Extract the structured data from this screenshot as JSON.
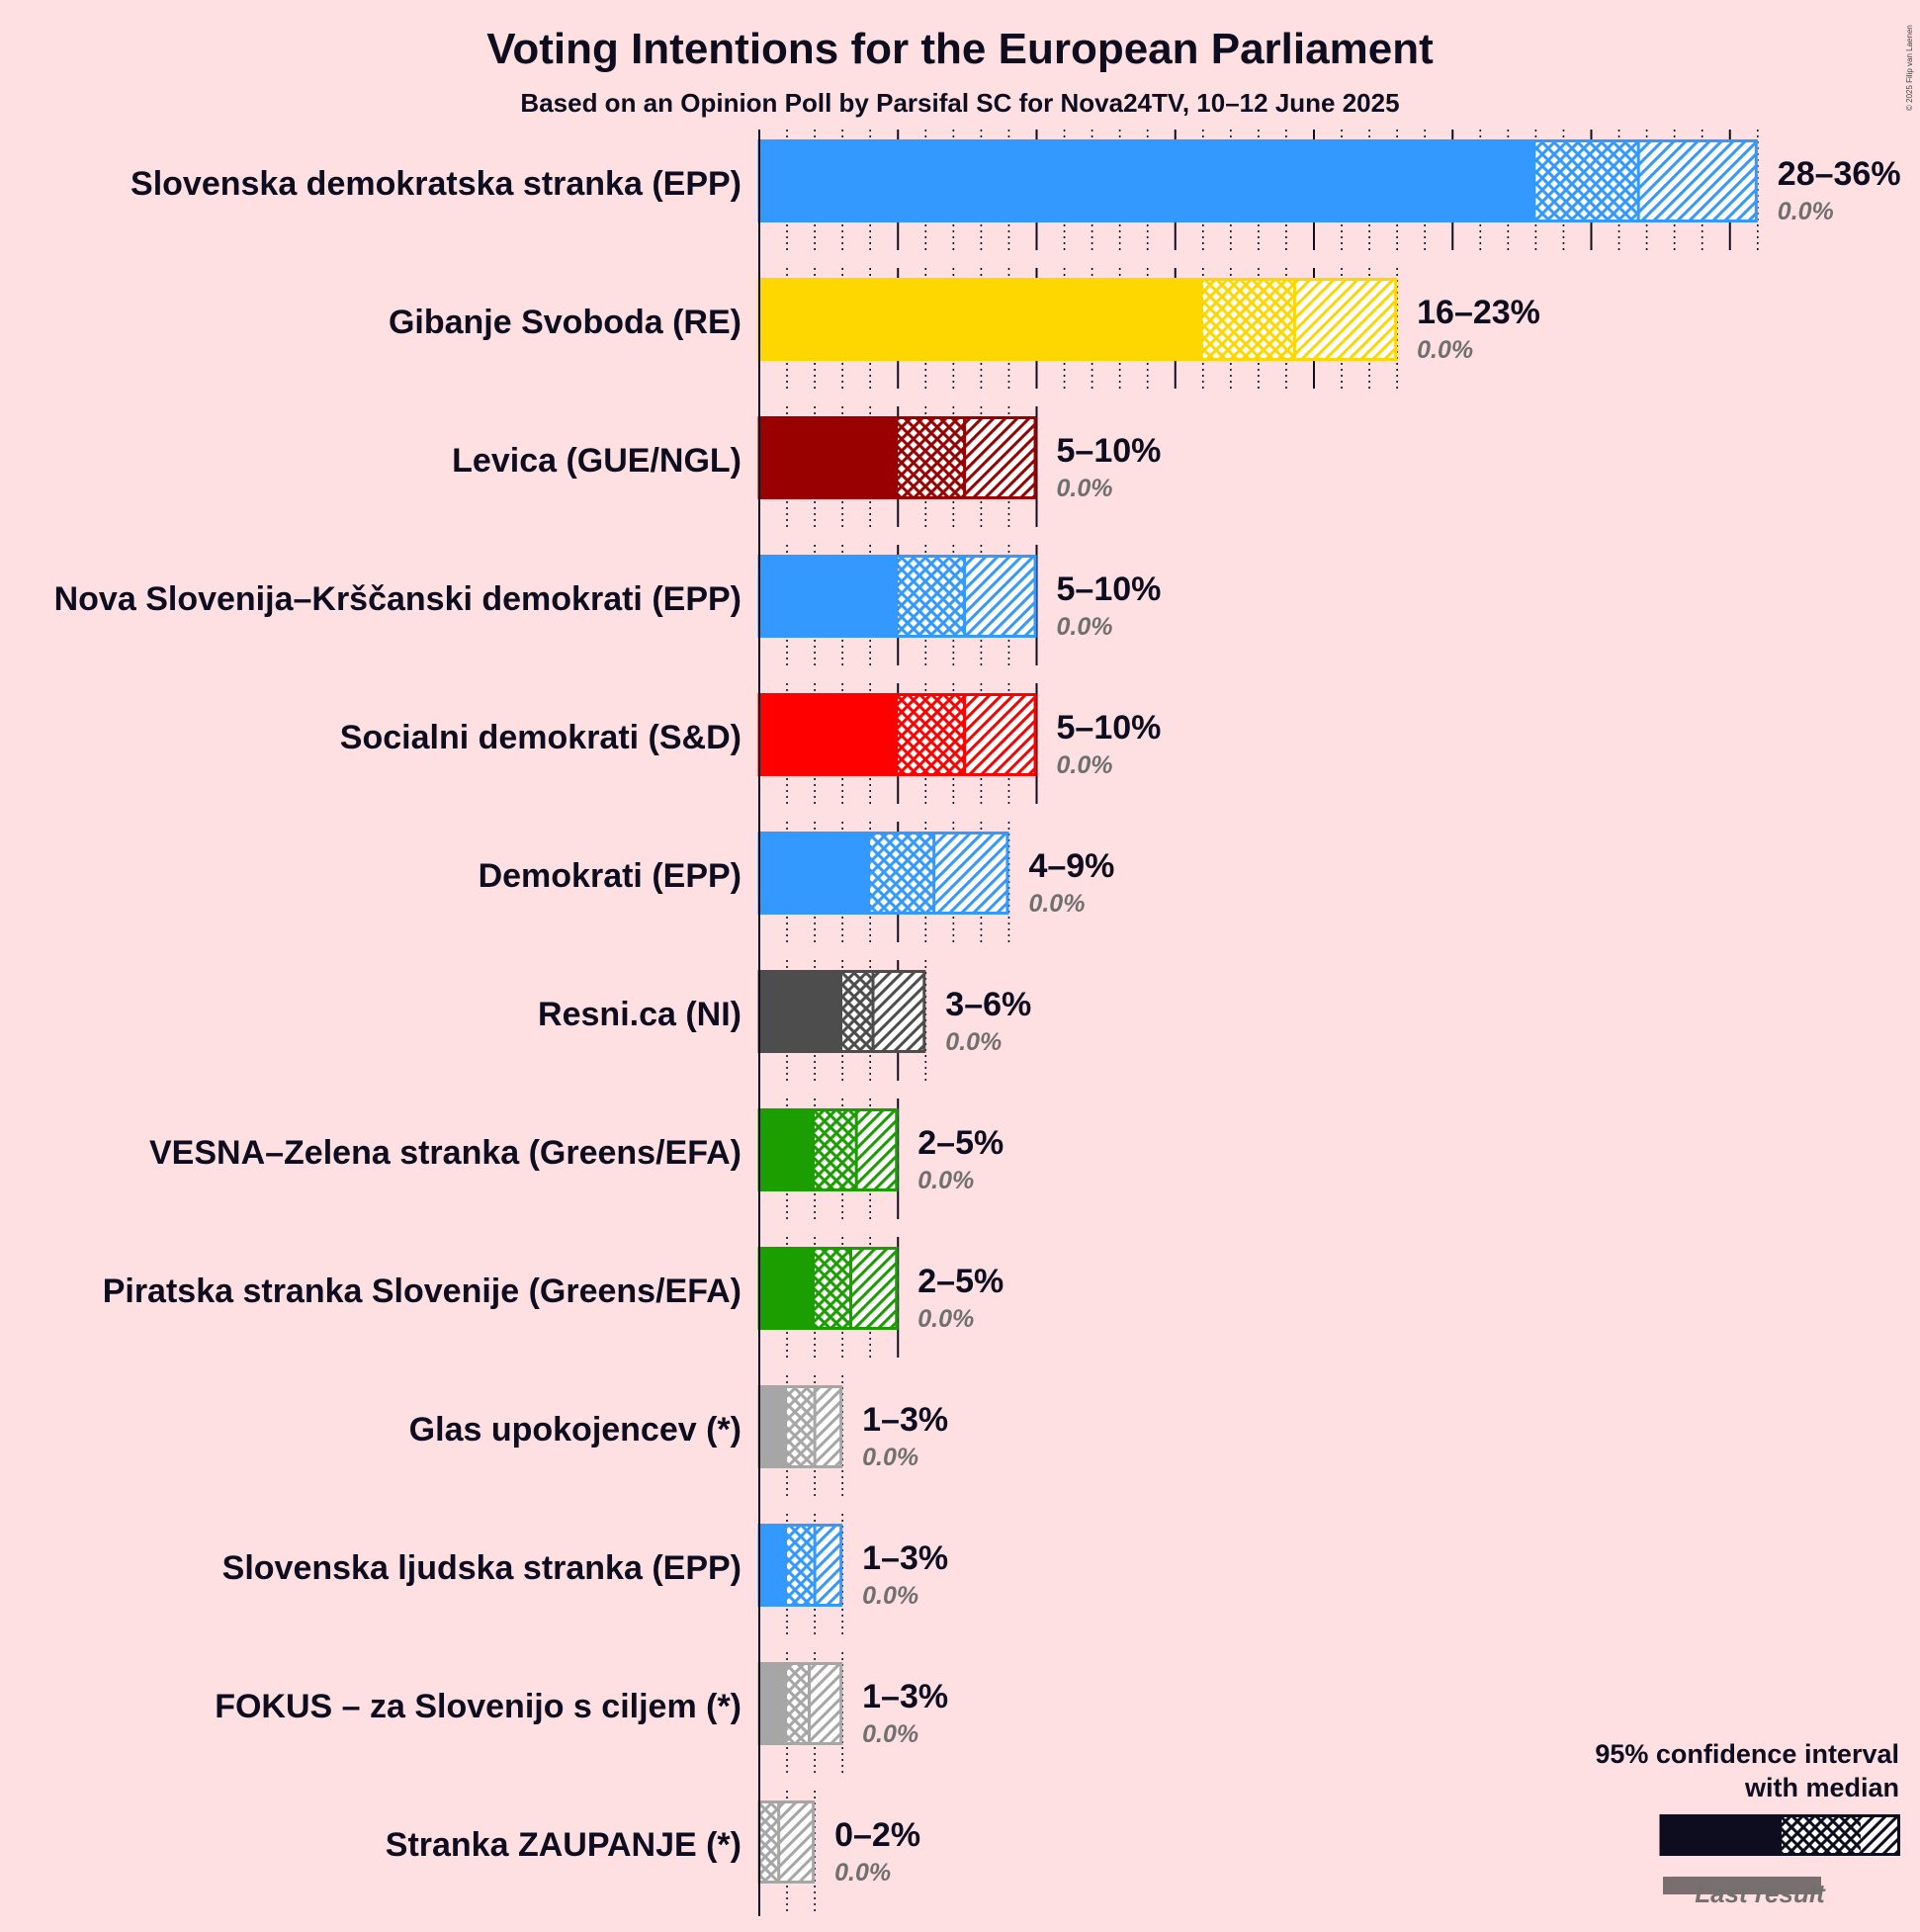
{
  "chart_data": {
    "type": "bar",
    "title": "Voting Intentions for the European Parliament",
    "subtitle": "Based on an Opinion Poll by Parsifal SC for Nova24TV, 10–12 June 2025",
    "copyright": "© 2025 Filip van Laenen",
    "parties": [
      {
        "name": "Slovenska demokratska stranka (EPP)",
        "color": "#3399FF",
        "low": 28,
        "median": 31.7,
        "high": 36,
        "range_label": "28–36%",
        "last_result": "0.0%"
      },
      {
        "name": "Gibanje Svoboda (RE)",
        "color": "#FFD700",
        "low": 16,
        "median": 19.3,
        "high": 23,
        "range_label": "16–23%",
        "last_result": "0.0%"
      },
      {
        "name": "Levica (GUE/NGL)",
        "color": "#990000",
        "low": 5,
        "median": 7.4,
        "high": 10,
        "range_label": "5–10%",
        "last_result": "0.0%"
      },
      {
        "name": "Nova Slovenija–Krščanski demokrati (EPP)",
        "color": "#3399FF",
        "low": 5,
        "median": 7.4,
        "high": 10,
        "range_label": "5–10%",
        "last_result": "0.0%"
      },
      {
        "name": "Socialni demokrati (S&D)",
        "color": "#FF0000",
        "low": 5,
        "median": 7.4,
        "high": 10,
        "range_label": "5–10%",
        "last_result": "0.0%"
      },
      {
        "name": "Demokrati (EPP)",
        "color": "#3399FF",
        "low": 4,
        "median": 6.3,
        "high": 9,
        "range_label": "4–9%",
        "last_result": "0.0%"
      },
      {
        "name": "Resni.ca (NI)",
        "color": "#4D4D4D",
        "low": 3,
        "median": 4.1,
        "high": 6,
        "range_label": "3–6%",
        "last_result": "0.0%"
      },
      {
        "name": "VESNA–Zelena stranka (Greens/EFA)",
        "color": "#1A9E00",
        "low": 2,
        "median": 3.5,
        "high": 5,
        "range_label": "2–5%",
        "last_result": "0.0%"
      },
      {
        "name": "Piratska stranka Slovenije (Greens/EFA)",
        "color": "#1A9E00",
        "low": 2,
        "median": 3.3,
        "high": 5,
        "range_label": "2–5%",
        "last_result": "0.0%"
      },
      {
        "name": "Glas upokojencev (*)",
        "color": "#A6A6A6",
        "low": 1,
        "median": 2.0,
        "high": 3,
        "range_label": "1–3%",
        "last_result": "0.0%"
      },
      {
        "name": "Slovenska ljudska stranka (EPP)",
        "color": "#3399FF",
        "low": 1,
        "median": 2.0,
        "high": 3,
        "range_label": "1–3%",
        "last_result": "0.0%"
      },
      {
        "name": "FOKUS – za Slovenijo s ciljem (*)",
        "color": "#A6A6A6",
        "low": 1,
        "median": 1.8,
        "high": 3,
        "range_label": "1–3%",
        "last_result": "0.0%"
      },
      {
        "name": "Stranka ZAUPANJE (*)",
        "color": "#A6A6A6",
        "low": 0,
        "median": 0.7,
        "high": 2,
        "range_label": "0–2%",
        "last_result": "0.0%"
      }
    ],
    "legend": {
      "line1": "95% confidence interval",
      "line2": "with median",
      "last_result_label": "Last result"
    }
  }
}
